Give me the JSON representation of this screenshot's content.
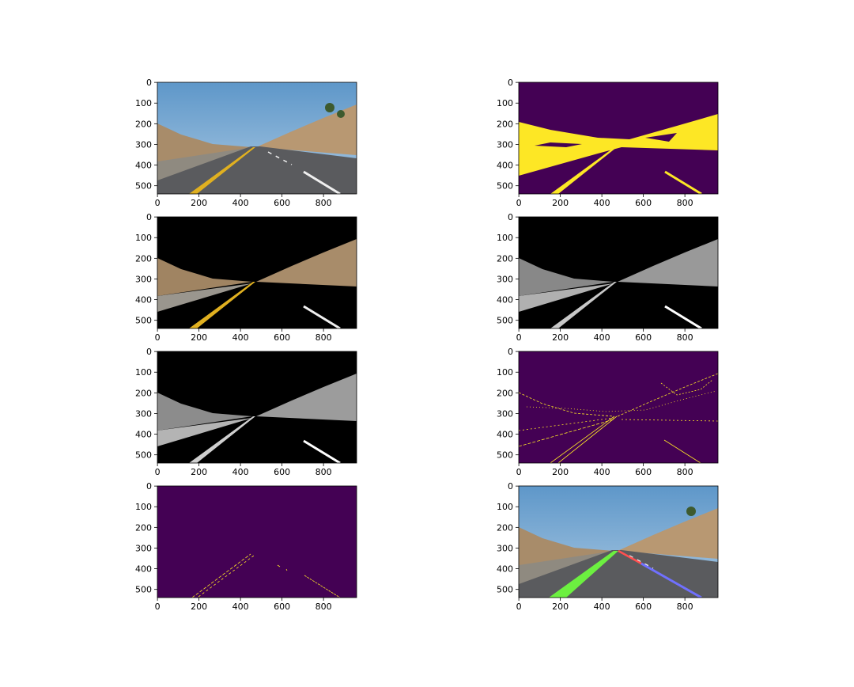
{
  "chart_data": [
    {
      "type": "image",
      "xlim": [
        -0.5,
        959.5
      ],
      "ylim": [
        539.5,
        -0.5
      ],
      "xticks": [
        0,
        200,
        400,
        600,
        800
      ],
      "yticks": [
        0,
        100,
        200,
        300,
        400,
        500
      ]
    },
    {
      "type": "image",
      "xlim": [
        -0.5,
        959.5
      ],
      "ylim": [
        539.5,
        -0.5
      ],
      "xticks": [
        0,
        200,
        400,
        600,
        800
      ],
      "yticks": [
        0,
        100,
        200,
        300,
        400,
        500
      ]
    },
    {
      "type": "image",
      "xlim": [
        -0.5,
        959.5
      ],
      "ylim": [
        539.5,
        -0.5
      ],
      "xticks": [
        0,
        200,
        400,
        600,
        800
      ],
      "yticks": [
        0,
        100,
        200,
        300,
        400,
        500
      ]
    },
    {
      "type": "image",
      "xlim": [
        -0.5,
        959.5
      ],
      "ylim": [
        539.5,
        -0.5
      ],
      "xticks": [
        0,
        200,
        400,
        600,
        800
      ],
      "yticks": [
        0,
        100,
        200,
        300,
        400,
        500
      ]
    },
    {
      "type": "image",
      "xlim": [
        -0.5,
        959.5
      ],
      "ylim": [
        539.5,
        -0.5
      ],
      "xticks": [
        0,
        200,
        400,
        600,
        800
      ],
      "yticks": [
        0,
        100,
        200,
        300,
        400,
        500
      ]
    },
    {
      "type": "image",
      "xlim": [
        -0.5,
        959.5
      ],
      "ylim": [
        539.5,
        -0.5
      ],
      "xticks": [
        0,
        200,
        400,
        600,
        800
      ],
      "yticks": [
        0,
        100,
        200,
        300,
        400,
        500
      ]
    },
    {
      "type": "image",
      "xlim": [
        -0.5,
        959.5
      ],
      "ylim": [
        539.5,
        -0.5
      ],
      "xticks": [
        0,
        200,
        400,
        600,
        800
      ],
      "yticks": [
        0,
        100,
        200,
        300,
        400,
        500
      ]
    },
    {
      "type": "image",
      "xlim": [
        -0.5,
        959.5
      ],
      "ylim": [
        539.5,
        -0.5
      ],
      "xticks": [
        0,
        200,
        400,
        600,
        800
      ],
      "yticks": [
        0,
        100,
        200,
        300,
        400,
        500
      ]
    }
  ]
}
